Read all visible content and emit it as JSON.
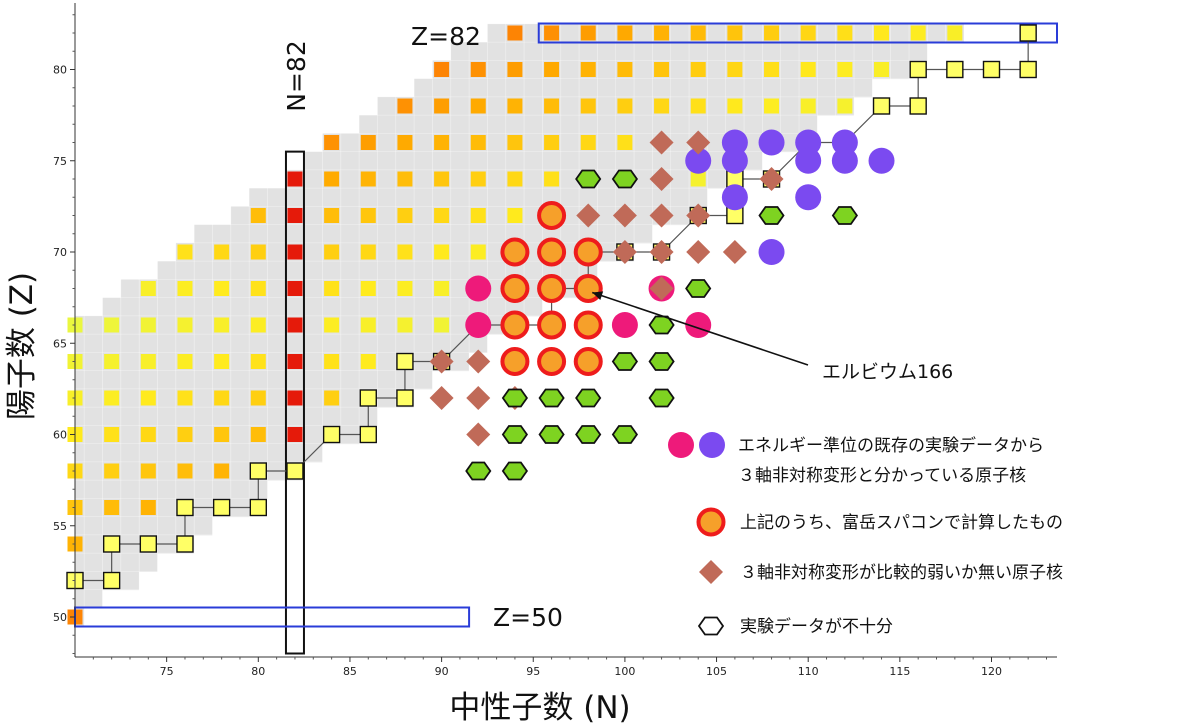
{
  "chart_data": {
    "type": "heatmap",
    "title": "",
    "xlabel": "中性子数 (N)",
    "ylabel": "陽子数 (Z)",
    "xlim": [
      70,
      123.5
    ],
    "ylim": [
      47.5,
      83.5
    ],
    "xticks": [
      75,
      80,
      85,
      90,
      95,
      100,
      105,
      110,
      115,
      120
    ],
    "yticks": [
      50,
      55,
      60,
      65,
      70,
      75,
      80
    ],
    "magic_labels": {
      "n82": "N=82",
      "z82": "Z=82",
      "z50": "Z=50"
    },
    "annotation": {
      "text": "エルビウム166",
      "N": 98,
      "Z": 68
    },
    "legend": [
      {
        "symbol": "pink-purple-circles",
        "line1": "エネルギー準位の既存の実験データから",
        "line2": "３軸非対称変形と分かっている原子核"
      },
      {
        "symbol": "orange-red-circle",
        "line1": "上記のうち、富岳スパコンで計算したもの"
      },
      {
        "symbol": "brown-diamond",
        "line1": "３軸非対称変形が比較的弱いか無い原子核"
      },
      {
        "symbol": "hexagon",
        "line1": "実験データが不十分"
      }
    ],
    "colors": {
      "background_cell": "#e2e2e2",
      "pink": "#ee1a7a",
      "purple": "#7b4af0",
      "orange_fill": "#f6a02a",
      "orange_ring": "#ee1c1c",
      "diamond": "#c06a58",
      "hexagon_fill": "#7ed321",
      "magic_box": "#2a3cd8"
    },
    "series": [
      {
        "name": "pink",
        "points": [
          [
            92,
            68
          ],
          [
            102,
            68
          ],
          [
            92,
            66
          ],
          [
            100,
            66
          ],
          [
            104,
            66
          ]
        ]
      },
      {
        "name": "purple",
        "points": [
          [
            106,
            76
          ],
          [
            108,
            76
          ],
          [
            110,
            76
          ],
          [
            112,
            76
          ],
          [
            104,
            75
          ],
          [
            106,
            75
          ],
          [
            110,
            75
          ],
          [
            112,
            75
          ],
          [
            114,
            75
          ],
          [
            106,
            73
          ],
          [
            110,
            73
          ],
          [
            108,
            70
          ]
        ]
      },
      {
        "name": "orange-calculated",
        "points": [
          [
            96,
            72
          ],
          [
            94,
            70
          ],
          [
            96,
            70
          ],
          [
            98,
            70
          ],
          [
            94,
            68
          ],
          [
            96,
            68
          ],
          [
            98,
            68
          ],
          [
            94,
            66
          ],
          [
            96,
            66
          ],
          [
            98,
            66
          ],
          [
            94,
            64
          ],
          [
            96,
            64
          ],
          [
            98,
            64
          ]
        ]
      },
      {
        "name": "diamond",
        "points": [
          [
            102,
            76
          ],
          [
            104,
            76
          ],
          [
            102,
            74
          ],
          [
            108,
            74
          ],
          [
            98,
            72
          ],
          [
            100,
            72
          ],
          [
            102,
            72
          ],
          [
            104,
            72
          ],
          [
            100,
            70
          ],
          [
            102,
            70
          ],
          [
            104,
            70
          ],
          [
            106,
            70
          ],
          [
            102,
            68
          ],
          [
            90,
            64
          ],
          [
            92,
            64
          ],
          [
            90,
            62
          ],
          [
            92,
            62
          ],
          [
            94,
            62
          ],
          [
            92,
            60
          ]
        ]
      },
      {
        "name": "hexagon",
        "points": [
          [
            98,
            74
          ],
          [
            100,
            74
          ],
          [
            108,
            72
          ],
          [
            112,
            72
          ],
          [
            104,
            68
          ],
          [
            102,
            66
          ],
          [
            100,
            64
          ],
          [
            102,
            64
          ],
          [
            94,
            62
          ],
          [
            96,
            62
          ],
          [
            98,
            62
          ],
          [
            102,
            62
          ],
          [
            94,
            60
          ],
          [
            96,
            60
          ],
          [
            98,
            60
          ],
          [
            100,
            60
          ],
          [
            92,
            58
          ],
          [
            94,
            58
          ]
        ]
      }
    ]
  }
}
